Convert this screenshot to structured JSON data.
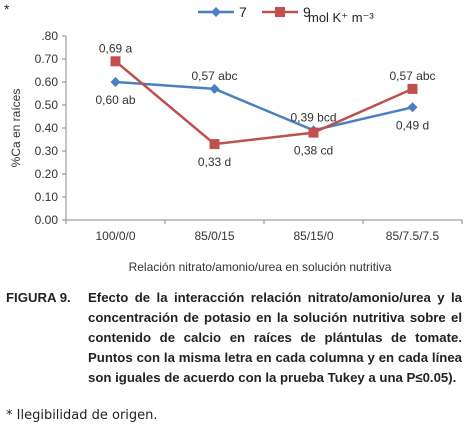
{
  "corner_mark": "*",
  "chart_data": {
    "type": "line",
    "categories": [
      "100/0/0",
      "85/0/15",
      "85/15/0",
      "85/7.5/7.5"
    ],
    "series": [
      {
        "name": "7",
        "color": "#4a7fc1",
        "marker": "diamond",
        "values": [
          0.6,
          0.57,
          0.39,
          0.49
        ],
        "labels": [
          "0,60 ab",
          "0,57 abc",
          "0,39 bcd",
          "0,49 d"
        ]
      },
      {
        "name": "9",
        "color": "#c0504d",
        "marker": "square",
        "values": [
          0.69,
          0.33,
          0.38,
          0.57
        ],
        "labels": [
          "0,69 a",
          "0,33 d",
          "0,38 cd",
          "0,57 abc"
        ]
      }
    ],
    "legend_unit": "mol K⁺ m⁻³",
    "legend_position": "top",
    "ylabel": "%Ca en raíces",
    "xlabel": "Relación nitrato/amonio/urea en solución nutritiva",
    "ylim": [
      0,
      0.8
    ],
    "yticks": [
      "0.00",
      "0.10",
      "0.20",
      "0.30",
      "0.40",
      "0.50",
      "0.60",
      "0.70",
      ".80"
    ],
    "grid": false
  },
  "caption": {
    "figure_label": "FIGURA 9.",
    "text": "Efecto de la interacción relación nitrato/amonio/urea y la concentración de potasio en la solución nutritiva sobre el contenido de calcio en raíces de plántulas de tomate. Puntos con la misma letra en cada columna y en cada línea son iguales de acuerdo con la prueba Tukey a una P≤0.05)."
  },
  "footnote": "* Ilegibilidad de origen."
}
